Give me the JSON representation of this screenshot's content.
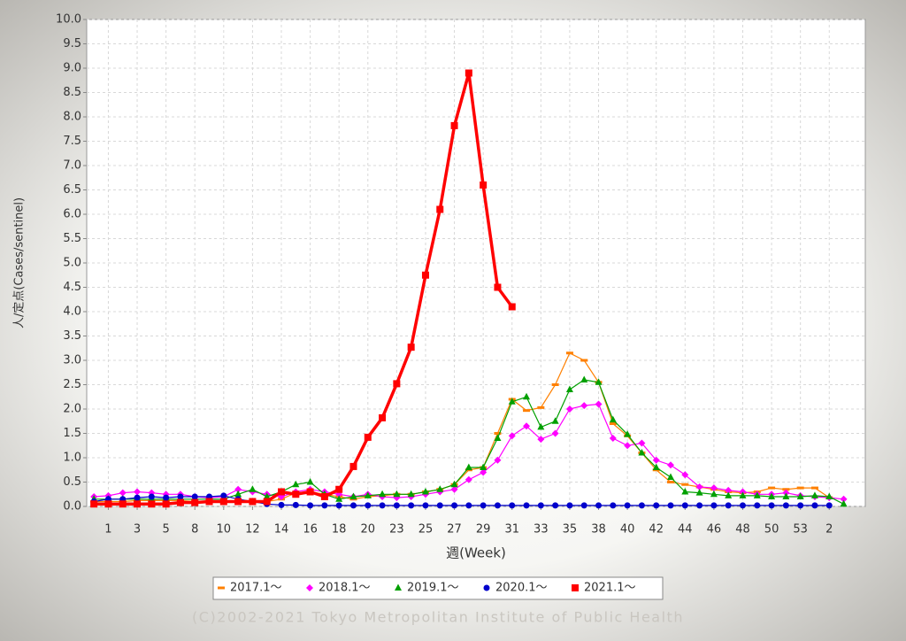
{
  "chart_data": {
    "type": "line",
    "ylabel": "人/定点(Cases/sentinel)",
    "xlabel": "週(Week)",
    "footer": "(C)2002-2021 Tokyo Metropolitan Institute of Public Health",
    "categories": [
      null,
      "1",
      null,
      "3",
      null,
      "5",
      null,
      "8",
      null,
      "10",
      null,
      "12",
      null,
      "14",
      null,
      "16",
      null,
      "18",
      null,
      "20",
      null,
      "23",
      null,
      "25",
      null,
      "27",
      null,
      "29",
      null,
      "31",
      null,
      "33",
      null,
      "35",
      null,
      "38",
      null,
      "40",
      null,
      "42",
      null,
      "44",
      null,
      "46",
      null,
      "48",
      null,
      "50",
      null,
      "53",
      null,
      "2",
      null,
      null
    ],
    "ylim": [
      0,
      10
    ],
    "yticks": [
      {
        "value": 0,
        "label": "0.0"
      },
      0.5,
      {
        "value": 1,
        "label": "1.0"
      },
      1.5,
      {
        "value": 2,
        "label": "2.0"
      },
      2.5,
      {
        "value": 3,
        "label": "3.0"
      },
      3.5,
      {
        "value": 4,
        "label": "4.0"
      },
      4.5,
      {
        "value": 5,
        "label": "5.0"
      },
      5.5,
      {
        "value": 6,
        "label": "6.0"
      },
      6.5,
      {
        "value": 7,
        "label": "7.0"
      },
      7.5,
      {
        "value": 8,
        "label": "8.0"
      },
      8.5,
      {
        "value": 9,
        "label": "9.0"
      },
      9.5,
      {
        "value": 10,
        "label": "10.0"
      }
    ],
    "grid": true,
    "legend": "bottom",
    "series": [
      {
        "name": "2017.1～",
        "color": "#ff8000",
        "marker": "dash",
        "line_width": 1.2,
        "values": [
          0.1,
          0.1,
          0.1,
          0.12,
          0.12,
          0.12,
          0.12,
          0.1,
          0.1,
          0.1,
          0.1,
          0.1,
          0.1,
          0.15,
          0.28,
          0.3,
          0.25,
          0.2,
          0.15,
          0.2,
          0.22,
          0.25,
          0.25,
          0.3,
          0.35,
          0.45,
          0.75,
          0.8,
          1.5,
          2.2,
          1.97,
          2.03,
          2.5,
          3.15,
          3.0,
          2.55,
          1.7,
          1.45,
          1.1,
          0.75,
          0.5,
          0.45,
          0.4,
          0.35,
          0.3,
          0.28,
          0.3,
          0.38,
          0.35,
          0.38,
          0.38,
          0.18,
          null,
          null
        ]
      },
      {
        "name": "2018.1～",
        "color": "#ff00ff",
        "marker": "diamond",
        "line_width": 1.2,
        "values": [
          0.2,
          0.22,
          0.28,
          0.3,
          0.28,
          0.25,
          0.25,
          0.2,
          0.18,
          0.2,
          0.35,
          0.3,
          0.25,
          0.2,
          0.3,
          0.35,
          0.3,
          0.25,
          0.2,
          0.25,
          0.2,
          0.18,
          0.2,
          0.25,
          0.3,
          0.35,
          0.55,
          0.7,
          0.95,
          1.45,
          1.65,
          1.38,
          1.5,
          2.0,
          2.07,
          2.1,
          1.4,
          1.25,
          1.3,
          0.95,
          0.85,
          0.65,
          0.4,
          0.38,
          0.33,
          0.3,
          0.25,
          0.25,
          0.28,
          0.22,
          0.2,
          0.18,
          0.15,
          null
        ]
      },
      {
        "name": "2019.1～",
        "color": "#00a000",
        "marker": "triangle",
        "line_width": 1.2,
        "values": [
          0.15,
          0.15,
          0.15,
          0.15,
          0.15,
          0.15,
          0.15,
          0.15,
          0.15,
          0.15,
          0.25,
          0.35,
          0.2,
          0.3,
          0.45,
          0.5,
          0.25,
          0.15,
          0.2,
          0.22,
          0.25,
          0.25,
          0.25,
          0.3,
          0.35,
          0.45,
          0.8,
          0.8,
          1.4,
          2.15,
          2.25,
          1.63,
          1.75,
          2.4,
          2.6,
          2.55,
          1.78,
          1.48,
          1.1,
          0.8,
          0.6,
          0.3,
          0.28,
          0.25,
          0.22,
          0.22,
          0.22,
          0.2,
          0.2,
          0.2,
          0.22,
          0.2,
          0.05,
          null
        ]
      },
      {
        "name": "2020.1～",
        "color": "#0000cc",
        "marker": "circle",
        "line_width": 1.2,
        "values": [
          0.1,
          0.15,
          0.15,
          0.18,
          0.2,
          0.18,
          0.2,
          0.2,
          0.2,
          0.22,
          0.15,
          0.1,
          0.05,
          0.03,
          0.03,
          0.02,
          0.02,
          0.02,
          0.02,
          0.02,
          0.02,
          0.02,
          0.02,
          0.02,
          0.02,
          0.02,
          0.02,
          0.02,
          0.02,
          0.02,
          0.02,
          0.02,
          0.02,
          0.02,
          0.02,
          0.02,
          0.02,
          0.02,
          0.02,
          0.02,
          0.02,
          0.02,
          0.02,
          0.02,
          0.02,
          0.02,
          0.02,
          0.02,
          0.02,
          0.02,
          0.02,
          0.02,
          null,
          null
        ]
      },
      {
        "name": "2021.1～",
        "color": "#ff0000",
        "marker": "square",
        "line_width": 3.5,
        "values": [
          0.05,
          0.05,
          0.05,
          0.05,
          0.05,
          0.05,
          0.08,
          0.08,
          0.1,
          0.1,
          0.1,
          0.1,
          0.1,
          0.3,
          0.25,
          0.3,
          0.2,
          0.35,
          0.82,
          1.42,
          1.82,
          2.52,
          3.27,
          4.75,
          6.1,
          7.82,
          8.9,
          6.6,
          4.5,
          4.1,
          null,
          null,
          null,
          null,
          null,
          null,
          null,
          null,
          null,
          null,
          null,
          null,
          null,
          null,
          null,
          null,
          null,
          null,
          null,
          null,
          null,
          null,
          null,
          null
        ]
      }
    ]
  }
}
